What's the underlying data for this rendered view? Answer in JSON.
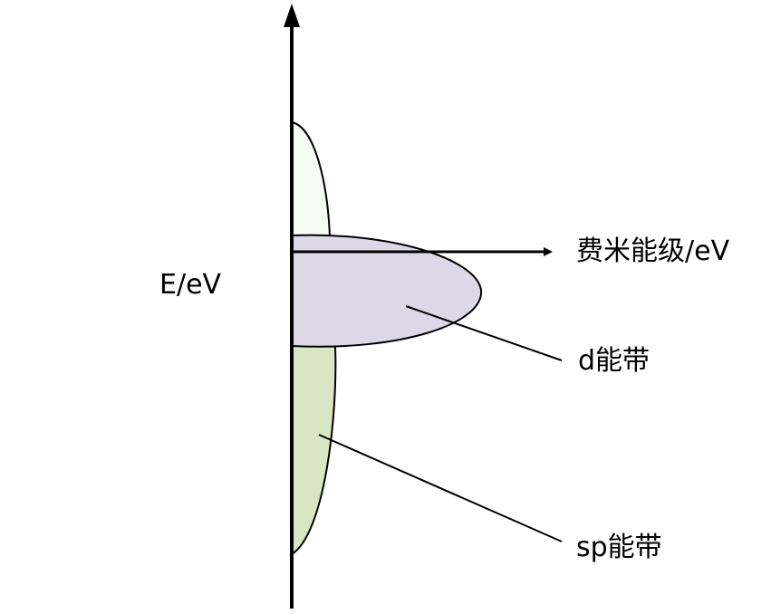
{
  "labels": {
    "y_axis": "E/eV",
    "fermi_level": "费米能级/eV",
    "d_band": "d能带",
    "sp_band": "sp能带"
  },
  "colors": {
    "upper_band_fill": "#f7fbf5",
    "d_band_fill": "#ddd8e8",
    "sp_band_fill": "#d8e6c4",
    "line": "#000000"
  }
}
